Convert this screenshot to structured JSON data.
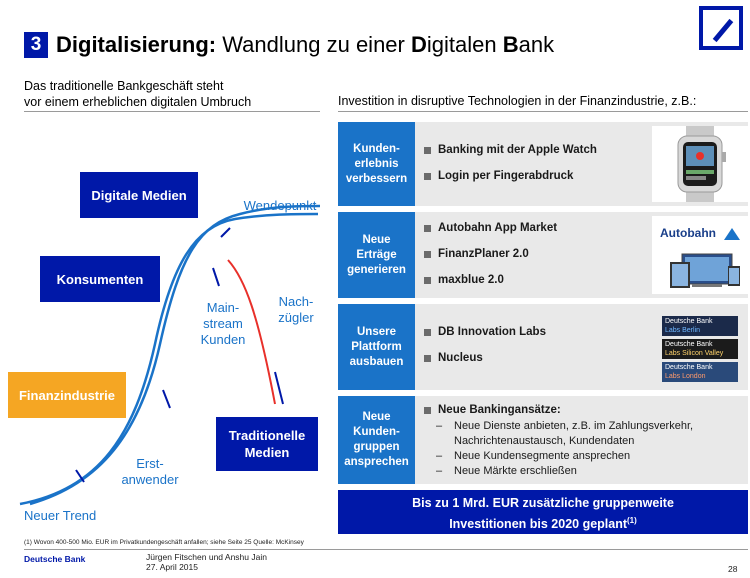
{
  "header": {
    "number": "3",
    "title_bold": "Digitalisierung:",
    "title_rest_parts": [
      {
        "text": " Wandlung zu einer ",
        "bold": false
      },
      {
        "text": "D",
        "bold": true
      },
      {
        "text": "igitalen ",
        "bold": false
      },
      {
        "text": "B",
        "bold": true
      },
      {
        "text": "ank",
        "bold": false
      }
    ]
  },
  "left": {
    "subtitle_line1": "Das traditionelle Bankgeschäft steht",
    "subtitle_line2": "vor einem erheblichen digitalen Umbruch",
    "boxes": {
      "digitale_medien": "Digitale Medien",
      "konsumenten": "Konsumenten",
      "finanzindustrie": "Finanzindustrie",
      "traditionelle_medien_1": "Traditionelle",
      "traditionelle_medien_2": "Medien"
    },
    "labels": {
      "wendepunkt": "Wendepunkt",
      "mainstream_1": "Main-",
      "mainstream_2": "stream",
      "mainstream_3": "Kunden",
      "nachzuegler_1": "Nach-",
      "nachzuegler_2": "zügler",
      "erstanwender_1": "Erst-",
      "erstanwender_2": "anwender",
      "neuer_trend": "Neuer Trend"
    },
    "colors": {
      "dark_blue": "#0018a8",
      "mid_blue": "#1a73c8",
      "orange": "#f5a623",
      "red": "#e8302a"
    }
  },
  "right": {
    "subtitle": "Investition in disruptive Technologien in der Finanzindustrie, z.B.:",
    "rows": [
      {
        "label_lines": [
          "Kunden-",
          "erlebnis",
          "verbessern"
        ],
        "items": [
          "Banking mit der Apple Watch",
          "Login per Fingerabdruck"
        ]
      },
      {
        "label_lines": [
          "Neue",
          "Erträge",
          "generieren"
        ],
        "items": [
          "Autobahn App Market",
          "FinanzPlaner 2.0",
          "maxblue 2.0"
        ]
      },
      {
        "label_lines": [
          "Unsere",
          "Plattform",
          "ausbauen"
        ],
        "items": [
          "DB Innovation Labs",
          "Nucleus"
        ]
      },
      {
        "label_lines": [
          "Neue",
          "Kunden-",
          "gruppen",
          "ansprechen"
        ],
        "items": [
          "Neue Bankingansätze:"
        ],
        "sub_items": [
          "Neue Dienste anbieten, z.B. im Zahlungsverkehr,",
          "Nachrichtenaustausch, Kundendaten",
          "Neue Kundensegmente ansprechen",
          "Neue Märkte erschließen"
        ]
      }
    ],
    "autobahn_logo": "Autobahn",
    "labs": [
      {
        "line1": "Deutsche Bank",
        "line2": "Labs Berlin"
      },
      {
        "line1": "Deutsche Bank",
        "line2": "Labs Silicon Valley"
      },
      {
        "line1": "Deutsche Bank",
        "line2": "Labs London"
      }
    ],
    "banner_line1": "Bis zu 1 Mrd. EUR zusätzliche gruppenweite",
    "banner_line2": "Investitionen bis 2020 geplant",
    "banner_sup": "(1)"
  },
  "footer": {
    "footnote": "(1) Wovon  400-500  Mio. EUR im Privatkundengeschäft   anfallen;  siehe  Seite  25       Quelle:  McKinsey",
    "brand": "Deutsche Bank",
    "names": "Jürgen Fitschen und Anshu Jain",
    "date": "27. April 2015",
    "page": "28"
  }
}
